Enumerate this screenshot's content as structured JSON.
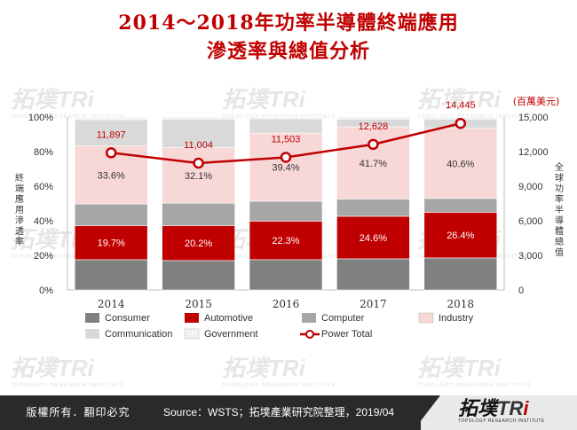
{
  "title_line1": "2014～2018年功率半導體終端應用",
  "title_line2": "滲透率與總值分析",
  "chart_data": {
    "type": "bar",
    "stacked": true,
    "categories": [
      "2014",
      "2015",
      "2016",
      "2017",
      "2018"
    ],
    "series": [
      {
        "name": "Consumer",
        "values": [
          17.5,
          17.0,
          17.5,
          18.0,
          18.5
        ],
        "color": "#808080"
      },
      {
        "name": "Automotive",
        "values": [
          19.7,
          20.2,
          22.3,
          24.6,
          26.4
        ],
        "color": "#c00000"
      },
      {
        "name": "Computer",
        "values": [
          12.5,
          13.0,
          11.5,
          10.0,
          8.0
        ],
        "color": "#a6a6a6"
      },
      {
        "name": "Industry",
        "values": [
          33.6,
          32.1,
          39.4,
          41.7,
          40.6
        ],
        "color": "#f8d7d7"
      },
      {
        "name": "Communication",
        "values": [
          15.2,
          16.5,
          8.3,
          4.5,
          5.3
        ],
        "color": "#d9d9d9"
      },
      {
        "name": "Government",
        "values": [
          1.5,
          1.2,
          1.0,
          1.2,
          1.2
        ],
        "color": "#f2f2f2"
      }
    ],
    "bar_labels": {
      "Automotive": [
        "19.7%",
        "20.2%",
        "22.3%",
        "24.6%",
        "26.4%"
      ],
      "Industry": [
        "33.6%",
        "32.1%",
        "39.4%",
        "41.7%",
        "40.6%"
      ]
    },
    "line": {
      "name": "Power Total",
      "values": [
        11897,
        11004,
        11503,
        12628,
        14445
      ],
      "labels": [
        "11,897",
        "11,004",
        "11,503",
        "12,628",
        "14,445"
      ],
      "color": "#c00000"
    },
    "y_left": {
      "label": "終端應用滲透率",
      "ticks": [
        "0%",
        "20%",
        "40%",
        "60%",
        "80%",
        "100%"
      ],
      "range": [
        0,
        100
      ]
    },
    "y_right": {
      "label": "全球功率半導體總值",
      "unit": "(百萬美元)",
      "ticks": [
        "0",
        "3,000",
        "6,000",
        "9,000",
        "12,000",
        "15,000"
      ],
      "range": [
        0,
        15000
      ]
    },
    "legend": [
      {
        "name": "Consumer",
        "kind": "box",
        "color": "#808080"
      },
      {
        "name": "Automotive",
        "kind": "box",
        "color": "#c00000"
      },
      {
        "name": "Computer",
        "kind": "box",
        "color": "#a6a6a6"
      },
      {
        "name": "Industry",
        "kind": "box",
        "color": "#f8d7d7"
      },
      {
        "name": "Communication",
        "kind": "box",
        "color": "#d9d9d9"
      },
      {
        "name": "Government",
        "kind": "box",
        "color": "#f2f2f2"
      },
      {
        "name": "Power Total",
        "kind": "line",
        "color": "#c00000"
      }
    ]
  },
  "watermark": {
    "brand": "拓墣TRi",
    "tagline": "TOPOLOGY RESEARCH INSTITUTE"
  },
  "footer": {
    "copyright": "版權所有．翻印必究",
    "source": "Source：WSTS；拓墣產業研究院整理，2019/04",
    "logo_cn": "拓墣",
    "logo_tr": "TR",
    "logo_i": "i",
    "logo_sub": "TOPOLOGY RESEARCH INSTITUTE"
  }
}
